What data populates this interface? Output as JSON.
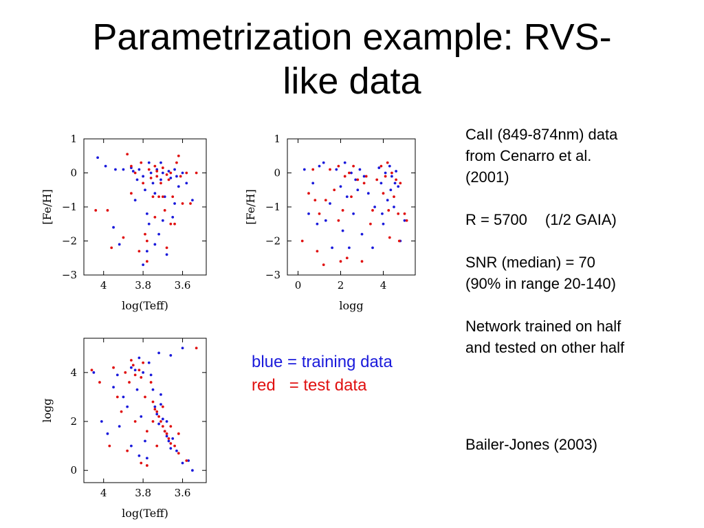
{
  "title": {
    "line1": "Parametrization example: RVS-",
    "line2": "like data"
  },
  "info": {
    "data_line1": "CaII (849-874nm) data",
    "data_line2": "from Cenarro et al.",
    "data_line3": "(2001)",
    "resolution_value": "R = 5700",
    "resolution_note": "(1/2 GAIA)",
    "snr_line1": "SNR (median) = 70",
    "snr_line2": "(90% in range 20-140)",
    "network_line1": "Network trained on half",
    "network_line2": "and tested on other half",
    "reference": "Bailer-Jones (2003)"
  },
  "legend": {
    "blue": "blue = training data",
    "red": "red   = test data"
  },
  "colors": {
    "training": "#1a1adb",
    "test": "#e01010"
  },
  "chart_data": [
    {
      "type": "scatter",
      "xlabel": "log(Teff)",
      "ylabel": "[Fe/H]",
      "xlim": [
        4.1,
        3.48
      ],
      "ylim": [
        -3,
        1
      ],
      "x_reversed": true,
      "xticks": [
        4,
        3.8,
        3.6
      ],
      "xtick_labels": [
        "4",
        "3.8",
        "3.6"
      ],
      "yticks": [
        1,
        0,
        -1,
        -2,
        -3
      ],
      "ytick_labels": [
        "1",
        "0",
        "−1",
        "−2",
        "−3"
      ],
      "series": [
        {
          "color": "#1a1adb",
          "points": [
            [
              4.03,
              0.45
            ],
            [
              3.99,
              0.2
            ],
            [
              3.94,
              0.1
            ],
            [
              3.9,
              0.1
            ],
            [
              3.86,
              0.15
            ],
            [
              3.85,
              0.05
            ],
            [
              3.83,
              -0.2
            ],
            [
              3.82,
              0.1
            ],
            [
              3.8,
              -0.1
            ],
            [
              3.79,
              -0.5
            ],
            [
              3.78,
              -1.2
            ],
            [
              3.78,
              -2.3
            ],
            [
              3.77,
              -1.5
            ],
            [
              3.76,
              0.0
            ],
            [
              3.75,
              -0.3
            ],
            [
              3.74,
              -0.6
            ],
            [
              3.73,
              0.1
            ],
            [
              3.72,
              -1.8
            ],
            [
              3.71,
              -0.2
            ],
            [
              3.7,
              0.0
            ],
            [
              3.69,
              -0.7
            ],
            [
              3.68,
              -2.4
            ],
            [
              3.67,
              0.05
            ],
            [
              3.66,
              -0.15
            ],
            [
              3.65,
              -1.3
            ],
            [
              3.64,
              0.1
            ],
            [
              3.63,
              -0.1
            ],
            [
              3.62,
              -0.4
            ],
            [
              3.6,
              0.0
            ],
            [
              3.58,
              -0.3
            ],
            [
              3.95,
              -1.6
            ],
            [
              3.8,
              -2.7
            ],
            [
              3.74,
              -2.1
            ],
            [
              3.84,
              -0.8
            ],
            [
              3.7,
              -1.4
            ],
            [
              3.92,
              -2.1
            ],
            [
              3.64,
              -0.9
            ],
            [
              3.77,
              0.3
            ],
            [
              3.71,
              0.3
            ],
            [
              3.55,
              -0.8
            ]
          ]
        },
        {
          "color": "#e01010",
          "points": [
            [
              4.04,
              -1.1
            ],
            [
              3.98,
              -1.1
            ],
            [
              3.96,
              -2.2
            ],
            [
              3.88,
              0.55
            ],
            [
              3.86,
              0.2
            ],
            [
              3.84,
              0.0
            ],
            [
              3.81,
              0.3
            ],
            [
              3.8,
              -0.3
            ],
            [
              3.79,
              -1.8
            ],
            [
              3.78,
              -2.6
            ],
            [
              3.77,
              0.1
            ],
            [
              3.76,
              -0.15
            ],
            [
              3.75,
              -0.7
            ],
            [
              3.74,
              0.2
            ],
            [
              3.73,
              -0.1
            ],
            [
              3.72,
              -0.7
            ],
            [
              3.71,
              -0.3
            ],
            [
              3.7,
              0.15
            ],
            [
              3.69,
              -1.1
            ],
            [
              3.68,
              -2.2
            ],
            [
              3.67,
              -0.2
            ],
            [
              3.66,
              0.0
            ],
            [
              3.65,
              -0.7
            ],
            [
              3.64,
              -1.5
            ],
            [
              3.63,
              0.3
            ],
            [
              3.61,
              -0.1
            ],
            [
              3.6,
              -0.9
            ],
            [
              3.58,
              0.0
            ],
            [
              3.56,
              -0.9
            ],
            [
              3.53,
              0.0
            ],
            [
              3.82,
              -2.3
            ],
            [
              3.74,
              -1.3
            ],
            [
              3.7,
              -0.7
            ],
            [
              3.78,
              -2.0
            ],
            [
              3.9,
              -1.9
            ],
            [
              3.62,
              0.5
            ],
            [
              3.86,
              -0.6
            ],
            [
              3.68,
              -0.05
            ],
            [
              3.73,
              0.05
            ],
            [
              3.66,
              -1.5
            ]
          ]
        }
      ]
    },
    {
      "type": "scatter",
      "xlabel": "logg",
      "ylabel": "[Fe/H]",
      "xlim": [
        -0.5,
        5.5
      ],
      "ylim": [
        -3,
        1
      ],
      "x_reversed": false,
      "xticks": [
        0,
        2,
        4
      ],
      "xtick_labels": [
        "0",
        "2",
        "4"
      ],
      "yticks": [
        1,
        0,
        -1,
        -2,
        -3
      ],
      "ytick_labels": [
        "1",
        "0",
        "−1",
        "−2",
        "−3"
      ],
      "series": [
        {
          "color": "#1a1adb",
          "points": [
            [
              0.3,
              0.1
            ],
            [
              0.7,
              -0.3
            ],
            [
              1.0,
              0.2
            ],
            [
              1.3,
              -1.4
            ],
            [
              1.6,
              -2.2
            ],
            [
              1.8,
              0.1
            ],
            [
              2.0,
              -0.4
            ],
            [
              2.2,
              0.3
            ],
            [
              2.3,
              -0.7
            ],
            [
              2.5,
              0.0
            ],
            [
              2.6,
              -1.2
            ],
            [
              2.7,
              -0.2
            ],
            [
              2.9,
              0.1
            ],
            [
              3.0,
              -1.8
            ],
            [
              3.1,
              -0.1
            ],
            [
              3.3,
              -0.6
            ],
            [
              3.5,
              -2.2
            ],
            [
              3.8,
              0.15
            ],
            [
              3.9,
              -0.3
            ],
            [
              4.0,
              -1.5
            ],
            [
              4.1,
              0.0
            ],
            [
              4.2,
              -0.8
            ],
            [
              4.3,
              0.2
            ],
            [
              4.4,
              -0.1
            ],
            [
              4.5,
              -1.0
            ],
            [
              4.6,
              0.05
            ],
            [
              4.7,
              -0.4
            ],
            [
              4.8,
              -2.0
            ],
            [
              5.0,
              -1.4
            ],
            [
              1.5,
              -0.9
            ],
            [
              2.4,
              -2.2
            ],
            [
              3.6,
              -1.0
            ],
            [
              4.35,
              -0.5
            ],
            [
              0.9,
              -1.5
            ],
            [
              2.8,
              -0.5
            ],
            [
              3.95,
              -1.2
            ],
            [
              1.2,
              0.3
            ],
            [
              4.55,
              -0.3
            ],
            [
              2.1,
              -1.7
            ],
            [
              0.5,
              -1.2
            ]
          ]
        },
        {
          "color": "#e01010",
          "points": [
            [
              0.2,
              -2.0
            ],
            [
              0.5,
              -0.6
            ],
            [
              0.8,
              -0.8
            ],
            [
              1.0,
              -1.2
            ],
            [
              1.2,
              -2.7
            ],
            [
              1.5,
              0.1
            ],
            [
              1.7,
              -0.5
            ],
            [
              1.9,
              0.2
            ],
            [
              2.1,
              -1.1
            ],
            [
              2.2,
              -0.1
            ],
            [
              2.4,
              0.0
            ],
            [
              2.5,
              -0.7
            ],
            [
              2.6,
              0.2
            ],
            [
              2.8,
              -0.2
            ],
            [
              3.0,
              -2.6
            ],
            [
              3.2,
              -0.1
            ],
            [
              3.4,
              -1.5
            ],
            [
              3.7,
              -0.2
            ],
            [
              3.9,
              0.2
            ],
            [
              4.0,
              -0.6
            ],
            [
              4.1,
              -0.1
            ],
            [
              4.2,
              0.3
            ],
            [
              4.3,
              -1.9
            ],
            [
              4.4,
              0.0
            ],
            [
              4.5,
              -0.7
            ],
            [
              4.6,
              -0.2
            ],
            [
              4.7,
              -1.2
            ],
            [
              4.8,
              -0.3
            ],
            [
              5.0,
              -1.2
            ],
            [
              5.1,
              -1.4
            ],
            [
              0.9,
              -2.3
            ],
            [
              2.3,
              -2.5
            ],
            [
              1.3,
              -0.8
            ],
            [
              3.5,
              -1.1
            ],
            [
              4.25,
              -1.1
            ],
            [
              3.1,
              -0.3
            ],
            [
              1.9,
              -1.4
            ],
            [
              4.75,
              -2.0
            ],
            [
              2.0,
              -2.6
            ],
            [
              0.7,
              0.1
            ]
          ]
        }
      ]
    },
    {
      "type": "scatter",
      "xlabel": "log(Teff)",
      "ylabel": "logg",
      "xlim": [
        4.1,
        3.48
      ],
      "ylim": [
        -0.5,
        5.4
      ],
      "x_reversed": true,
      "xticks": [
        4,
        3.8,
        3.6
      ],
      "xtick_labels": [
        "4",
        "3.8",
        "3.6"
      ],
      "yticks": [
        4,
        2,
        0
      ],
      "ytick_labels": [
        "4",
        "2",
        "0"
      ],
      "series": [
        {
          "color": "#1a1adb",
          "points": [
            [
              4.05,
              4.0
            ],
            [
              4.01,
              2.0
            ],
            [
              3.98,
              1.5
            ],
            [
              3.95,
              3.4
            ],
            [
              3.93,
              3.9
            ],
            [
              3.9,
              3.0
            ],
            [
              3.88,
              2.6
            ],
            [
              3.86,
              4.2
            ],
            [
              3.84,
              4.1
            ],
            [
              3.83,
              3.3
            ],
            [
              3.82,
              4.6
            ],
            [
              3.81,
              2.2
            ],
            [
              3.8,
              4.0
            ],
            [
              3.79,
              1.2
            ],
            [
              3.78,
              0.5
            ],
            [
              3.77,
              4.4
            ],
            [
              3.75,
              3.3
            ],
            [
              3.74,
              2.6
            ],
            [
              3.73,
              2.3
            ],
            [
              3.72,
              1.9
            ],
            [
              3.71,
              3.1
            ],
            [
              3.7,
              2.1
            ],
            [
              3.69,
              1.6
            ],
            [
              3.68,
              1.4
            ],
            [
              3.67,
              1.2
            ],
            [
              3.66,
              0.9
            ],
            [
              3.65,
              1.3
            ],
            [
              3.63,
              0.8
            ],
            [
              3.6,
              0.3
            ],
            [
              3.55,
              0.0
            ],
            [
              3.6,
              5.0
            ],
            [
              3.66,
              4.7
            ],
            [
              3.72,
              4.8
            ],
            [
              3.92,
              1.8
            ],
            [
              3.86,
              1.0
            ],
            [
              3.76,
              3.9
            ],
            [
              3.71,
              2.7
            ],
            [
              3.68,
              2.0
            ],
            [
              3.82,
              0.6
            ],
            [
              3.57,
              0.4
            ]
          ]
        },
        {
          "color": "#e01010",
          "points": [
            [
              4.06,
              4.1
            ],
            [
              4.02,
              3.6
            ],
            [
              3.97,
              1.0
            ],
            [
              3.95,
              4.2
            ],
            [
              3.91,
              2.4
            ],
            [
              3.89,
              4.0
            ],
            [
              3.87,
              3.6
            ],
            [
              3.85,
              4.3
            ],
            [
              3.84,
              3.9
            ],
            [
              3.82,
              4.1
            ],
            [
              3.81,
              3.8
            ],
            [
              3.8,
              4.4
            ],
            [
              3.79,
              3.0
            ],
            [
              3.78,
              1.6
            ],
            [
              3.76,
              3.6
            ],
            [
              3.75,
              2.8
            ],
            [
              3.74,
              2.5
            ],
            [
              3.73,
              2.4
            ],
            [
              3.72,
              2.2
            ],
            [
              3.71,
              2.0
            ],
            [
              3.7,
              1.8
            ],
            [
              3.69,
              1.6
            ],
            [
              3.68,
              1.5
            ],
            [
              3.67,
              1.3
            ],
            [
              3.66,
              1.1
            ],
            [
              3.64,
              1.0
            ],
            [
              3.62,
              0.7
            ],
            [
              3.58,
              0.4
            ],
            [
              3.53,
              5.0
            ],
            [
              3.78,
              0.2
            ],
            [
              3.88,
              0.8
            ],
            [
              3.84,
              2.0
            ],
            [
              3.73,
              1.0
            ],
            [
              3.7,
              2.6
            ],
            [
              3.66,
              1.8
            ],
            [
              3.93,
              3.0
            ],
            [
              3.75,
              2.0
            ],
            [
              3.62,
              1.5
            ],
            [
              3.86,
              4.5
            ],
            [
              3.81,
              0.3
            ]
          ]
        }
      ]
    }
  ]
}
